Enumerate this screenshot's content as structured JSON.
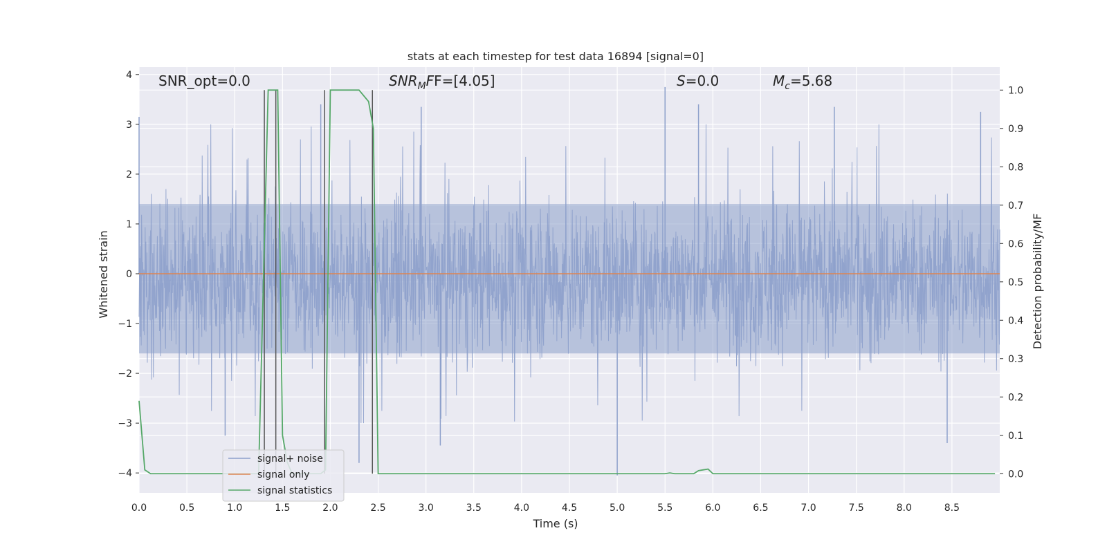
{
  "chart_data": {
    "type": "line",
    "title": "stats at each timestep for test data 16894 [signal=0]",
    "xlabel": "Time (s)",
    "ylabel": "Whitened strain",
    "y2label": "Detection probability/MF",
    "xlim": [
      0.0,
      9.0
    ],
    "ylim": [
      -4.4,
      4.15
    ],
    "y2lim": [
      -0.05,
      1.06
    ],
    "xticks": [
      "0.0",
      "0.5",
      "1.0",
      "1.5",
      "2.0",
      "2.5",
      "3.0",
      "3.5",
      "4.0",
      "4.5",
      "5.0",
      "5.5",
      "6.0",
      "6.5",
      "7.0",
      "7.5",
      "8.0",
      "8.5"
    ],
    "yticks": [
      "−4",
      "−3",
      "−2",
      "−1",
      "0",
      "1",
      "2",
      "3",
      "4"
    ],
    "y2ticks": [
      "0.0",
      "0.1",
      "0.2",
      "0.3",
      "0.4",
      "0.5",
      "0.6",
      "0.7",
      "0.8",
      "0.9",
      "1.0"
    ],
    "grid": true,
    "legend_position": "lower-left",
    "annotations": {
      "snr_opt": "SNR_opt=0.0",
      "snr_mf_main": "SNR",
      "snr_mf_sub": "M",
      "snr_mf_tail": "F=[4.05]",
      "s_var": "S",
      "s_tail": "=0.0",
      "mc_var": "M",
      "mc_sub": "c",
      "mc_tail": "=5.68"
    },
    "noise_envelope": {
      "typical_upper": 1.4,
      "typical_lower": -1.6,
      "notable_spikes": [
        {
          "t": 0.0,
          "y": 3.15
        },
        {
          "t": 1.9,
          "y": 3.4
        },
        {
          "t": 2.95,
          "y": 3.35
        },
        {
          "t": 5.5,
          "y": 3.75
        },
        {
          "t": 5.85,
          "y": 3.4
        },
        {
          "t": 7.27,
          "y": 3.35
        },
        {
          "t": 8.8,
          "y": 3.25
        },
        {
          "t": 5.0,
          "y": -4.05
        },
        {
          "t": 2.3,
          "y": -3.8
        },
        {
          "t": 3.15,
          "y": -3.45
        },
        {
          "t": 8.45,
          "y": -3.4
        },
        {
          "t": 0.9,
          "y": -3.25
        }
      ]
    },
    "detection_windows": [
      {
        "start": 1.31,
        "end": 1.43
      },
      {
        "start": 1.94,
        "end": 2.44
      }
    ],
    "series": [
      {
        "name": "signal+ noise",
        "color": "#8da0cb",
        "axis": "left",
        "style": "dense-noise"
      },
      {
        "name": "signal only",
        "color": "#dd8452",
        "axis": "left",
        "x": [
          0.0,
          9.0
        ],
        "values": [
          0.0,
          0.0
        ]
      },
      {
        "name": "signal statistics",
        "color": "#55a868",
        "axis": "right",
        "x": [
          0.0,
          0.06,
          0.12,
          0.5,
          1.0,
          1.2,
          1.25,
          1.3,
          1.35,
          1.4,
          1.45,
          1.5,
          1.55,
          1.6,
          1.8,
          1.9,
          1.95,
          2.0,
          2.05,
          2.1,
          2.2,
          2.3,
          2.4,
          2.45,
          2.5,
          2.55,
          3.0,
          3.5,
          4.0,
          5.0,
          5.5,
          5.55,
          5.6,
          5.8,
          5.85,
          5.9,
          5.95,
          6.0,
          6.5,
          7.0,
          7.5,
          8.0,
          8.5,
          8.95
        ],
        "values": [
          0.19,
          0.01,
          0.0,
          0.0,
          0.0,
          0.0,
          0.0,
          0.5,
          1.0,
          1.0,
          1.0,
          0.1,
          0.03,
          0.0,
          0.0,
          0.0,
          0.01,
          1.0,
          1.0,
          1.0,
          1.0,
          1.0,
          0.97,
          0.9,
          0.0,
          0.0,
          0.0,
          0.0,
          0.0,
          0.0,
          0.0,
          0.002,
          0.0,
          0.0,
          0.008,
          0.01,
          0.012,
          0.0,
          0.0,
          0.0,
          0.0,
          0.0,
          0.0,
          0.0
        ]
      }
    ]
  }
}
